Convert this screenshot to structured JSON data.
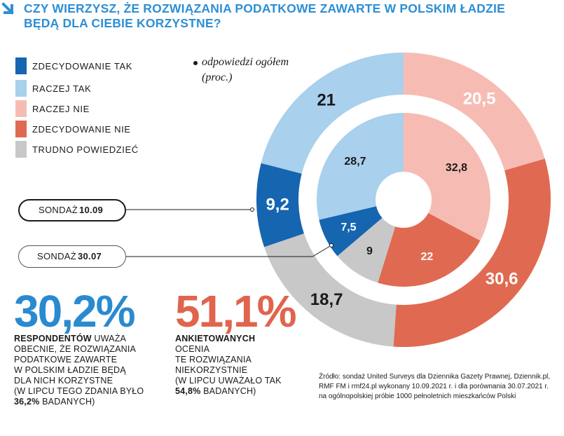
{
  "title_lines": [
    "CZY WIERZYSZ, ŻE ROZWIĄZANIA PODATKOWE ZAWARTE W POLSKIM ŁADZIE",
    "BĘDĄ DLA CIEBIE KORZYSTNE?"
  ],
  "note": {
    "line1": "odpowiedzi ogółem",
    "line2": "(proc.)"
  },
  "colors": {
    "zdecydowanie_tak": "#1565b0",
    "raczej_tak": "#a9d0ec",
    "raczej_nie": "#f6bcb4",
    "zdecydowanie_nie": "#e06a51",
    "trudno": "#c8c8c8",
    "title": "#2d8fd5"
  },
  "chart_data": {
    "type": "donut",
    "categories": [
      "ZDECYDOWANIE TAK",
      "RACZEJ TAK",
      "RACZEJ NIE",
      "ZDECYDOWANIE NIE",
      "TRUDNO POWIEDZIEĆ"
    ],
    "series": [
      {
        "name": "SONDAŻ 10.09",
        "values": [
          9.2,
          21,
          20.5,
          30.6,
          18.7
        ],
        "labels": [
          "9,2",
          "21",
          "20,5",
          "30,6",
          "18,7"
        ]
      },
      {
        "name": "SONDAŻ 30.07",
        "values": [
          7.5,
          28.7,
          32.8,
          22,
          9
        ],
        "labels": [
          "7,5",
          "28,7",
          "32,8",
          "22",
          "9"
        ]
      }
    ]
  },
  "legend": [
    {
      "label": "ZDECYDOWANIE TAK",
      "color": "#1565b0"
    },
    {
      "label": "RACZEJ TAK",
      "color": "#a9d0ec"
    },
    {
      "label": "RACZEJ NIE",
      "color": "#f6bcb4"
    },
    {
      "label": "ZDECYDOWANIE NIE",
      "color": "#e06a51"
    },
    {
      "label": "TRUDNO POWIEDZIEĆ",
      "color": "#c8c8c8"
    }
  ],
  "survey_outer": {
    "prefix": "SONDAŻ",
    "date": "10.09"
  },
  "survey_inner": {
    "prefix": "SONDAŻ",
    "date": "30.07"
  },
  "stat_favorable": {
    "value": "30,2%",
    "desc": {
      "bold": "RESPONDENTÓW",
      "line1_rest": " UWAŻA",
      "line2": "OBECNIE, ŻE ROZWIĄZANIA",
      "line3": "PODATKOWE ZAWARTE",
      "line4": "W POLSKIM ŁADZIE BĘDĄ",
      "line5": "DLA NICH KORZYSTNE",
      "line6": "(W LIPCU TEGO ZDANIA BYŁO",
      "line7_bold": "36,2%",
      "line7_rest": " BADANYCH)"
    }
  },
  "stat_unfavorable": {
    "value": "51,1%",
    "desc": {
      "bold": "ANKIETOWANYCH",
      "line2": "OCENIA",
      "line3": "TE ROZWIĄZANIA",
      "line4": "NIEKORZYSTNIE",
      "line5": "(W LIPCU UWAŻAŁO TAK",
      "line6_bold": "54,8%",
      "line6_rest": " BADANYCH)"
    }
  },
  "source": {
    "line1": "Źródło: sondaż United Surveys dla Dziennika Gazety Prawnej, Dziennik.pl,",
    "line2": "RMF FM i rmf24.pl wykonany 10.09.2021 r. i dla porównania 30.07.2021 r.",
    "line3": "na ogólnopolskiej próbie 1000 pełnoletnich mieszkańców Polski"
  }
}
